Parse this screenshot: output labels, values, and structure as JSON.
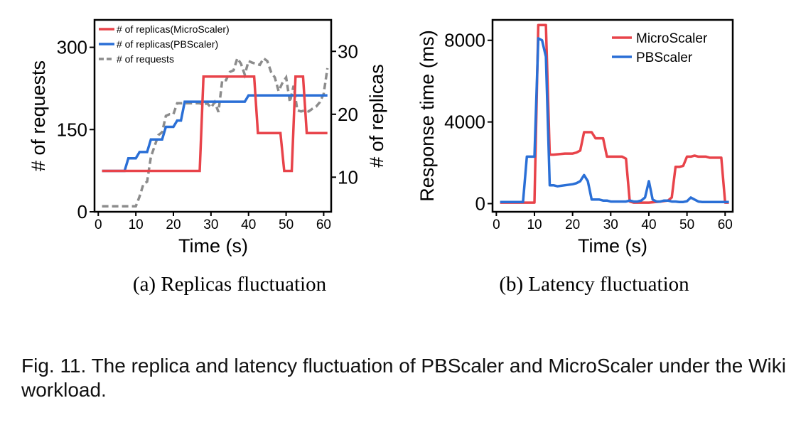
{
  "colors": {
    "microscaler": "#e8434a",
    "pbscaler": "#2a6fd6",
    "requests": "#8c8c8c",
    "axis": "#000000"
  },
  "chart_data": [
    {
      "type": "line",
      "subcaption": "(a) Replicas fluctuation",
      "xlabel": "Time (s)",
      "ylabel_left": "# of requests",
      "ylabel_right": "# of replicas",
      "xlim": [
        -1,
        62
      ],
      "ylim_left": [
        0,
        350
      ],
      "ylim_right": [
        4.5,
        35
      ],
      "xticks": [
        0,
        10,
        20,
        30,
        40,
        50,
        60
      ],
      "yticks_left": [
        0,
        150,
        300
      ],
      "yticks_right": [
        10,
        20,
        30
      ],
      "legend_position": "top-left",
      "series": [
        {
          "name": "# of replicas(MicroScaler)",
          "axis": "right",
          "style": "solid",
          "color": "#e8434a",
          "x": [
            1,
            27,
            28,
            41.5,
            42.5,
            48.5,
            49.5,
            51.5,
            52.5,
            54.5,
            55.5,
            61
          ],
          "values": [
            11,
            11,
            26,
            26,
            17,
            17,
            11,
            11,
            26,
            26,
            17,
            17
          ]
        },
        {
          "name": "# of replicas(PBScaler)",
          "axis": "right",
          "style": "solid",
          "color": "#2a6fd6",
          "x": [
            1,
            7,
            8,
            10,
            11,
            13,
            14,
            17,
            18,
            20,
            21,
            22,
            23,
            39,
            40,
            41,
            42,
            61
          ],
          "values": [
            11,
            11,
            13,
            13,
            14,
            14,
            16,
            16,
            18,
            18,
            19,
            19,
            22,
            22,
            23,
            23,
            23,
            23
          ]
        },
        {
          "name": "# of requests",
          "axis": "left",
          "style": "dashed",
          "color": "#8c8c8c",
          "x": [
            1,
            10,
            11,
            12,
            13,
            14,
            15,
            16,
            17,
            18,
            19,
            20,
            21,
            22,
            23,
            24,
            25,
            26,
            27,
            28,
            29,
            30,
            31,
            32,
            33,
            34,
            35,
            36,
            37,
            38,
            39,
            40,
            41,
            42,
            43,
            44,
            45,
            46,
            47,
            48,
            49,
            50,
            51,
            52,
            53,
            54,
            55,
            56,
            57,
            58,
            59,
            60,
            61
          ],
          "values": [
            10,
            10,
            28,
            50,
            55,
            100,
            120,
            140,
            145,
            175,
            178,
            178,
            198,
            198,
            198,
            198,
            198,
            198,
            198,
            195,
            198,
            190,
            200,
            182,
            240,
            240,
            255,
            258,
            280,
            270,
            250,
            275,
            272,
            270,
            268,
            280,
            275,
            255,
            245,
            220,
            235,
            245,
            200,
            230,
            185,
            183,
            185,
            183,
            188,
            192,
            200,
            215,
            262
          ]
        }
      ]
    },
    {
      "type": "line",
      "subcaption": "(b) Latency fluctuation",
      "xlabel": "Time (s)",
      "ylabel": "Response time (ms)",
      "xlim": [
        -1,
        62
      ],
      "ylim": [
        -400,
        9000
      ],
      "xticks": [
        0,
        10,
        20,
        30,
        40,
        50,
        60
      ],
      "yticks": [
        0,
        4000,
        8000
      ],
      "legend_position": "top-right",
      "series": [
        {
          "name": "MicroScaler",
          "color": "#e8434a",
          "x": [
            1,
            10,
            11,
            12,
            13,
            14,
            15,
            18,
            20,
            21,
            22,
            23,
            24,
            25,
            26,
            27,
            28,
            29,
            30,
            31,
            32,
            33,
            34,
            35,
            36,
            40,
            43,
            45,
            46,
            47,
            48,
            49,
            50,
            51,
            52,
            53,
            54,
            55,
            56,
            57,
            58,
            59,
            60,
            61
          ],
          "values": [
            50,
            50,
            8750,
            8750,
            8750,
            2400,
            2400,
            2450,
            2450,
            2500,
            2600,
            3500,
            3500,
            3500,
            3200,
            3200,
            3200,
            2300,
            2300,
            2300,
            2300,
            2300,
            2200,
            100,
            50,
            50,
            100,
            150,
            300,
            1800,
            1800,
            1850,
            2300,
            2300,
            2350,
            2300,
            2300,
            2300,
            2250,
            2250,
            2250,
            2250,
            50,
            50
          ]
        },
        {
          "name": "PBScaler",
          "color": "#2a6fd6",
          "x": [
            1,
            7,
            8,
            9,
            10,
            11,
            12,
            13,
            14,
            15,
            16,
            18,
            20,
            21,
            22,
            23,
            24,
            25,
            26,
            27,
            28,
            29,
            30,
            31,
            32,
            33,
            34,
            35,
            36,
            37,
            38,
            39,
            40,
            41,
            42,
            43,
            44,
            45,
            46,
            47,
            48,
            49,
            50,
            51,
            52,
            53,
            54,
            55,
            56,
            57,
            58,
            59,
            60,
            61
          ],
          "values": [
            80,
            80,
            2300,
            2300,
            2300,
            8100,
            8000,
            7200,
            900,
            900,
            850,
            900,
            950,
            1000,
            1100,
            1400,
            1100,
            200,
            200,
            200,
            150,
            150,
            100,
            100,
            100,
            100,
            100,
            150,
            100,
            100,
            150,
            300,
            1100,
            200,
            100,
            100,
            150,
            150,
            100,
            100,
            80,
            80,
            120,
            300,
            200,
            100,
            80,
            80,
            80,
            80,
            80,
            80,
            80,
            80
          ]
        }
      ]
    }
  ],
  "caption": "Fig. 11. The replica and latency fluctuation of PBScaler and MicroScaler under the Wiki workload."
}
